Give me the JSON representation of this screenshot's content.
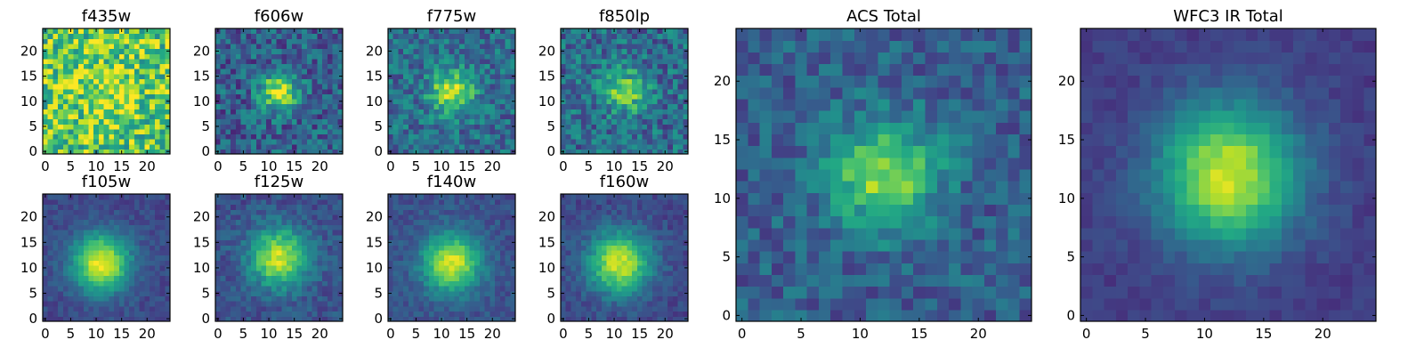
{
  "chart_data": [
    {
      "type": "heatmap",
      "title": "f435w",
      "xlim": [
        0,
        24
      ],
      "ylim": [
        0,
        24
      ],
      "xticks": [
        0,
        5,
        10,
        15,
        20
      ],
      "yticks": [
        0,
        5,
        10,
        15,
        20
      ],
      "colormap": "viridis",
      "grid": false,
      "approx_profile": {
        "peak": [
          12,
          12
        ],
        "sigma": 4.0,
        "amp": 0.15,
        "bg": 0.75,
        "noise": 0.3
      }
    },
    {
      "type": "heatmap",
      "title": "f606w",
      "xlim": [
        0,
        24
      ],
      "ylim": [
        0,
        24
      ],
      "xticks": [
        0,
        5,
        10,
        15,
        20
      ],
      "yticks": [
        0,
        5,
        10,
        15,
        20
      ],
      "colormap": "viridis",
      "grid": false,
      "approx_profile": {
        "peak": [
          12,
          12
        ],
        "sigma": 2.6,
        "amp": 0.62,
        "bg": 0.3,
        "noise": 0.2
      }
    },
    {
      "type": "heatmap",
      "title": "f775w",
      "xlim": [
        0,
        24
      ],
      "ylim": [
        0,
        24
      ],
      "xticks": [
        0,
        5,
        10,
        15,
        20
      ],
      "yticks": [
        0,
        5,
        10,
        15,
        20
      ],
      "colormap": "viridis",
      "grid": false,
      "approx_profile": {
        "peak": [
          12,
          12
        ],
        "sigma": 3.0,
        "amp": 0.58,
        "bg": 0.35,
        "noise": 0.18
      }
    },
    {
      "type": "heatmap",
      "title": "f850lp",
      "xlim": [
        0,
        24
      ],
      "ylim": [
        0,
        24
      ],
      "xticks": [
        0,
        5,
        10,
        15,
        20
      ],
      "yticks": [
        0,
        5,
        10,
        15,
        20
      ],
      "colormap": "viridis",
      "grid": false,
      "approx_profile": {
        "peak": [
          12,
          12
        ],
        "sigma": 3.0,
        "amp": 0.45,
        "bg": 0.35,
        "noise": 0.2
      }
    },
    {
      "type": "heatmap",
      "title": "f105w",
      "xlim": [
        0,
        24
      ],
      "ylim": [
        0,
        24
      ],
      "xticks": [
        0,
        5,
        10,
        15,
        20
      ],
      "yticks": [
        0,
        5,
        10,
        15,
        20
      ],
      "colormap": "viridis",
      "grid": false,
      "approx_profile": {
        "peak": [
          11,
          11
        ],
        "sigma": 4.0,
        "amp": 0.75,
        "bg": 0.22,
        "noise": 0.07
      }
    },
    {
      "type": "heatmap",
      "title": "f125w",
      "xlim": [
        0,
        24
      ],
      "ylim": [
        0,
        24
      ],
      "xticks": [
        0,
        5,
        10,
        15,
        20
      ],
      "yticks": [
        0,
        5,
        10,
        15,
        20
      ],
      "colormap": "viridis",
      "grid": false,
      "approx_profile": {
        "peak": [
          12,
          12
        ],
        "sigma": 4.0,
        "amp": 0.68,
        "bg": 0.25,
        "noise": 0.1
      }
    },
    {
      "type": "heatmap",
      "title": "f140w",
      "xlim": [
        0,
        24
      ],
      "ylim": [
        0,
        24
      ],
      "xticks": [
        0,
        5,
        10,
        15,
        20
      ],
      "yticks": [
        0,
        5,
        10,
        15,
        20
      ],
      "colormap": "viridis",
      "grid": false,
      "approx_profile": {
        "peak": [
          12,
          11
        ],
        "sigma": 4.0,
        "amp": 0.7,
        "bg": 0.25,
        "noise": 0.08
      }
    },
    {
      "type": "heatmap",
      "title": "f160w",
      "xlim": [
        0,
        24
      ],
      "ylim": [
        0,
        24
      ],
      "xticks": [
        0,
        5,
        10,
        15,
        20
      ],
      "yticks": [
        0,
        5,
        10,
        15,
        20
      ],
      "colormap": "viridis",
      "grid": false,
      "approx_profile": {
        "peak": [
          11,
          11
        ],
        "sigma": 4.2,
        "amp": 0.72,
        "bg": 0.22,
        "noise": 0.08
      }
    },
    {
      "type": "heatmap",
      "title": "ACS Total",
      "xlim": [
        0,
        24
      ],
      "ylim": [
        0,
        24
      ],
      "xticks": [
        0,
        5,
        10,
        15,
        20
      ],
      "yticks": [
        0,
        5,
        10,
        15,
        20
      ],
      "colormap": "viridis",
      "grid": false,
      "approx_profile": {
        "peak": [
          12,
          12
        ],
        "sigma": 3.2,
        "amp": 0.55,
        "bg": 0.3,
        "noise": 0.14
      }
    },
    {
      "type": "heatmap",
      "title": "WFC3 IR Total",
      "xlim": [
        0,
        24
      ],
      "ylim": [
        0,
        24
      ],
      "xticks": [
        0,
        5,
        10,
        15,
        20
      ],
      "yticks": [
        0,
        5,
        10,
        15,
        20
      ],
      "colormap": "viridis",
      "grid": false,
      "approx_profile": {
        "peak": [
          12,
          12
        ],
        "sigma": 4.2,
        "amp": 0.75,
        "bg": 0.18,
        "noise": 0.05
      }
    }
  ]
}
